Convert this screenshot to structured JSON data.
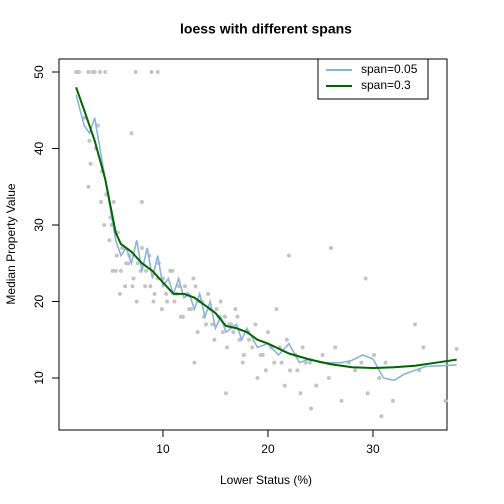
{
  "chart_data": {
    "type": "scatter",
    "title": "loess with different spans",
    "x_label": "Lower Status (%)",
    "y_label": "Median Property Value",
    "xlim": [
      0.1,
      37.05
    ],
    "ylim": [
      3.2,
      51.7
    ],
    "xticks": [
      10,
      20,
      30
    ],
    "yticks": [
      10,
      20,
      30,
      40,
      50
    ],
    "legend": "top-right",
    "points": {
      "color": "#c4c4c4",
      "x": [
        1.73,
        2.0,
        2.9,
        3.3,
        3.5,
        4.0,
        4.5,
        7.4,
        8.9,
        9.5,
        2.5,
        3.0,
        3.8,
        4.2,
        4.6,
        5.0,
        5.3,
        5.7,
        6.1,
        6.5,
        2.9,
        3.1,
        3.6,
        4.1,
        4.4,
        4.9,
        5.2,
        5.6,
        6.0,
        6.4,
        6.8,
        7.2,
        7.6,
        8.0,
        8.4,
        8.8,
        9.2,
        9.6,
        10.0,
        10.4,
        5.1,
        5.5,
        5.9,
        6.3,
        6.7,
        7.1,
        7.5,
        7.9,
        8.3,
        8.7,
        9.1,
        9.5,
        9.9,
        10.3,
        10.7,
        11.1,
        11.5,
        11.9,
        12.3,
        12.7,
        13.1,
        13.5,
        13.9,
        14.3,
        14.7,
        15.1,
        15.5,
        15.9,
        16.3,
        16.7,
        10.9,
        11.3,
        11.7,
        12.1,
        12.5,
        12.9,
        13.3,
        13.7,
        14.1,
        14.5,
        14.9,
        15.3,
        15.7,
        16.1,
        16.5,
        16.9,
        17.3,
        17.7,
        18.1,
        18.5,
        17.1,
        17.6,
        18.2,
        18.8,
        19.3,
        19.8,
        20.3,
        20.8,
        21.3,
        21.8,
        19.0,
        19.5,
        20.0,
        20.6,
        21.1,
        21.6,
        22.1,
        22.6,
        23.1,
        23.6,
        22.8,
        23.3,
        24.0,
        24.6,
        25.2,
        25.8,
        26.4,
        27.0,
        27.7,
        28.3,
        26.0,
        28.9,
        29.5,
        30.1,
        30.6,
        31.2,
        31.9,
        34.4,
        34.8,
        36.9,
        37.97,
        24.1,
        30.8,
        34.0,
        29.3,
        22.0,
        13.0,
        8.0,
        7.0,
        16.0
      ],
      "y": [
        50,
        50,
        50,
        50,
        50,
        50,
        50,
        50,
        50,
        50,
        44,
        41,
        43,
        37,
        34,
        31,
        33,
        29,
        27,
        25,
        35,
        38,
        40,
        33,
        30,
        28,
        24,
        26,
        24,
        22,
        26,
        23,
        25,
        27,
        24,
        22,
        21,
        25,
        23,
        20,
        30,
        24,
        21,
        27,
        25,
        22,
        20,
        24,
        22,
        26,
        20,
        23,
        19,
        21,
        24,
        20,
        22,
        18,
        21,
        19,
        22,
        20,
        18,
        21,
        17,
        19,
        20,
        18,
        17,
        16,
        24,
        21,
        18,
        22,
        19,
        23,
        16,
        20,
        17,
        19,
        15,
        18,
        16,
        14,
        17,
        19,
        15,
        13,
        16,
        14,
        18,
        12,
        15,
        17,
        13,
        11,
        14,
        19,
        12,
        15,
        10,
        13,
        16,
        12,
        14,
        9,
        11,
        13,
        8,
        12,
        11,
        14,
        12,
        9,
        13,
        10,
        14,
        7,
        12,
        11,
        27,
        12,
        8,
        13,
        10,
        12,
        7,
        11,
        14,
        7,
        13.8,
        6,
        5,
        17,
        23,
        26,
        12,
        33,
        42,
        8
      ]
    },
    "series": [
      {
        "name": "span=0.05",
        "color": "#8db4d8",
        "x": [
          1.73,
          2.5,
          3,
          3.5,
          4,
          4.5,
          5,
          5.5,
          6,
          6.5,
          7,
          7.5,
          8,
          8.5,
          9,
          9.5,
          10,
          10.5,
          11,
          11.5,
          12,
          12.5,
          13,
          13.5,
          14,
          14.5,
          15,
          15.5,
          16,
          17,
          17.5,
          18,
          19,
          20,
          21,
          22,
          23,
          24,
          25,
          27,
          28,
          29,
          30,
          31,
          32,
          33,
          35,
          37.97
        ],
        "values": [
          47,
          43,
          42,
          44,
          40,
          36,
          32,
          28,
          26,
          27,
          25,
          28,
          24,
          27,
          23,
          26,
          22,
          23,
          21,
          23,
          20.5,
          21,
          19,
          21,
          18,
          20,
          16.5,
          18,
          16,
          17,
          15,
          16.5,
          14,
          14.5,
          13,
          14.5,
          12,
          12.5,
          12,
          12,
          12.3,
          13,
          12.5,
          10,
          9.7,
          10.5,
          11.5,
          11.7
        ]
      },
      {
        "name": "span=0.3",
        "color": "#006400",
        "x": [
          1.73,
          2.5,
          3.5,
          4.5,
          5.5,
          6,
          7,
          8,
          9,
          10,
          11,
          12,
          13,
          14,
          15,
          16,
          17,
          18,
          19,
          20,
          22,
          24,
          26,
          28,
          30,
          32,
          34,
          36,
          37.97
        ],
        "values": [
          48,
          45,
          41,
          36,
          29,
          27.5,
          26.5,
          25,
          24,
          22.5,
          21,
          21,
          20.5,
          19.5,
          18.5,
          16.8,
          16.5,
          16,
          15,
          14.5,
          13.2,
          12.4,
          11.8,
          11.4,
          11.3,
          11.4,
          11.6,
          12,
          12.4
        ]
      }
    ]
  }
}
